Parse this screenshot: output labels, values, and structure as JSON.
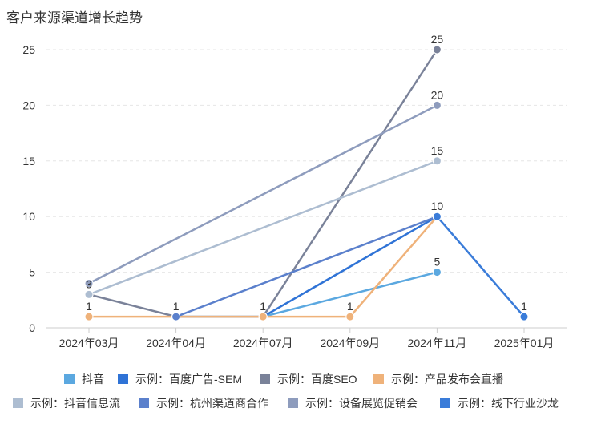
{
  "chart_data": {
    "type": "line",
    "title": "客户来源渠道增长趋势",
    "categories": [
      "2024年03月",
      "2024年04月",
      "2024年07月",
      "2024年09月",
      "2024年11月",
      "2025年01月"
    ],
    "ylim": [
      0,
      25
    ],
    "yticks": [
      0,
      5,
      10,
      15,
      20,
      25
    ],
    "grid": true,
    "legend_position": "bottom",
    "series": [
      {
        "name": "抖音",
        "color": "#5ba8e0",
        "values": [
          null,
          null,
          1,
          null,
          5,
          null
        ]
      },
      {
        "name": "示例：百度广告-SEM",
        "color": "#2f73d6",
        "values": [
          null,
          1,
          1,
          null,
          10,
          null
        ]
      },
      {
        "name": "示例：百度SEO",
        "color": "#7a8299",
        "values": [
          3,
          1,
          1,
          null,
          25,
          null
        ]
      },
      {
        "name": "示例：产品发布会直播",
        "color": "#efb27a",
        "values": [
          1,
          1,
          1,
          1,
          10,
          null
        ]
      },
      {
        "name": "示例：抖音信息流",
        "color": "#adbdd1",
        "values": [
          3,
          null,
          null,
          null,
          15,
          null
        ]
      },
      {
        "name": "示例：杭州渠道商合作",
        "color": "#5b80cc",
        "values": [
          null,
          1,
          null,
          null,
          10,
          null
        ]
      },
      {
        "name": "示例：设备展览促销会",
        "color": "#8e9cbd",
        "values": [
          4,
          null,
          null,
          null,
          20,
          null
        ]
      },
      {
        "name": "示例：线下行业沙龙",
        "color": "#3a7cd9",
        "values": [
          null,
          null,
          null,
          null,
          10,
          1
        ]
      }
    ],
    "data_labels": [
      {
        "x": "2024年03月",
        "y": 3,
        "text": "3"
      },
      {
        "x": "2024年03月",
        "y": 1,
        "text": "1"
      },
      {
        "x": "2024年04月",
        "y": 1,
        "text": "1"
      },
      {
        "x": "2024年07月",
        "y": 1,
        "text": "1"
      },
      {
        "x": "2024年09月",
        "y": 1,
        "text": "1"
      },
      {
        "x": "2024年11月",
        "y": 5,
        "text": "5"
      },
      {
        "x": "2024年11月",
        "y": 10,
        "text": "10"
      },
      {
        "x": "2024年11月",
        "y": 15,
        "text": "15"
      },
      {
        "x": "2024年11月",
        "y": 20,
        "text": "20"
      },
      {
        "x": "2024年11月",
        "y": 25,
        "text": "25"
      },
      {
        "x": "2025年01月",
        "y": 1,
        "text": "1"
      }
    ]
  }
}
